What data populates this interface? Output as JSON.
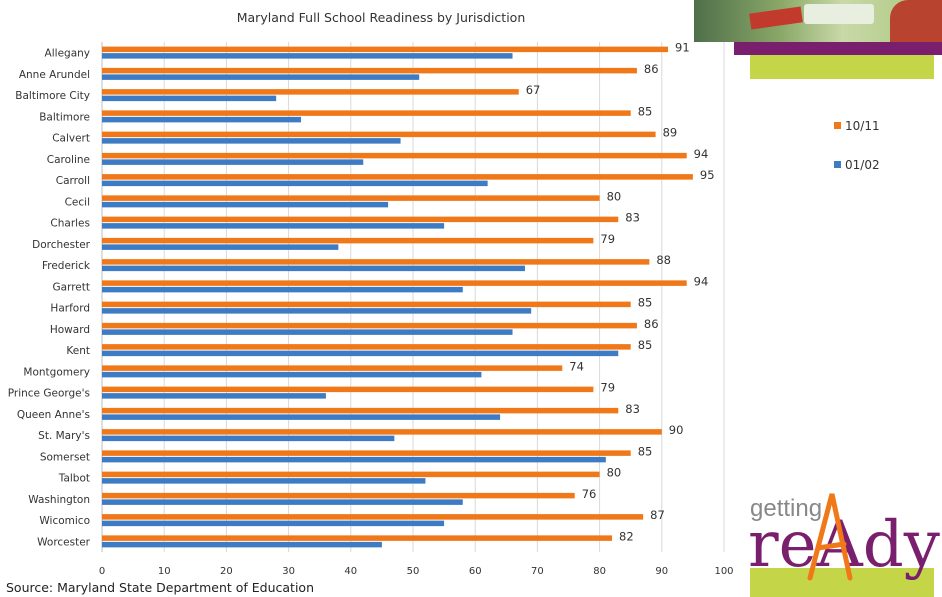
{
  "chart_data": {
    "type": "bar",
    "orientation": "horizontal",
    "title": "Maryland Full School Readiness by Jurisdiction",
    "categories": [
      "Allegany",
      "Anne Arundel",
      "Baltimore City",
      "Baltimore",
      "Calvert",
      "Caroline",
      "Carroll",
      "Cecil",
      "Charles",
      "Dorchester",
      "Frederick",
      "Garrett",
      "Harford",
      "Howard",
      "Kent",
      "Montgomery",
      "Prince George's",
      "Queen Anne's",
      "St. Mary's",
      "Somerset",
      "Talbot",
      "Washington",
      "Wicomico",
      "Worcester"
    ],
    "series": [
      {
        "name": "10/11",
        "color": "#f07818",
        "values": [
          91,
          86,
          67,
          85,
          89,
          94,
          95,
          80,
          83,
          79,
          88,
          94,
          85,
          86,
          85,
          74,
          79,
          83,
          90,
          85,
          80,
          76,
          87,
          82
        ],
        "labels_shown": true
      },
      {
        "name": "01/02",
        "color": "#3d7cc4",
        "values": [
          66,
          51,
          28,
          32,
          48,
          42,
          62,
          46,
          55,
          38,
          68,
          58,
          69,
          66,
          83,
          61,
          36,
          64,
          47,
          81,
          52,
          58,
          55,
          45
        ],
        "labels_shown": false
      }
    ],
    "xlim": [
      0,
      100
    ],
    "xticks": [
      "0",
      "10",
      "20",
      "30",
      "40",
      "50",
      "60",
      "70",
      "80",
      "90",
      "100"
    ],
    "grid": "vertical",
    "legend_position": "right"
  },
  "source": "Source: Maryland State Department of Education",
  "logo": {
    "top_text": "getting",
    "bottom_text": "reAdy",
    "colors": {
      "top": "#888888",
      "main": "#7a1f6e",
      "accent": "#f07818"
    }
  },
  "decor": {
    "photo": "classroom-photo",
    "purple": "#7a1f6e",
    "green": "#c5d548"
  }
}
